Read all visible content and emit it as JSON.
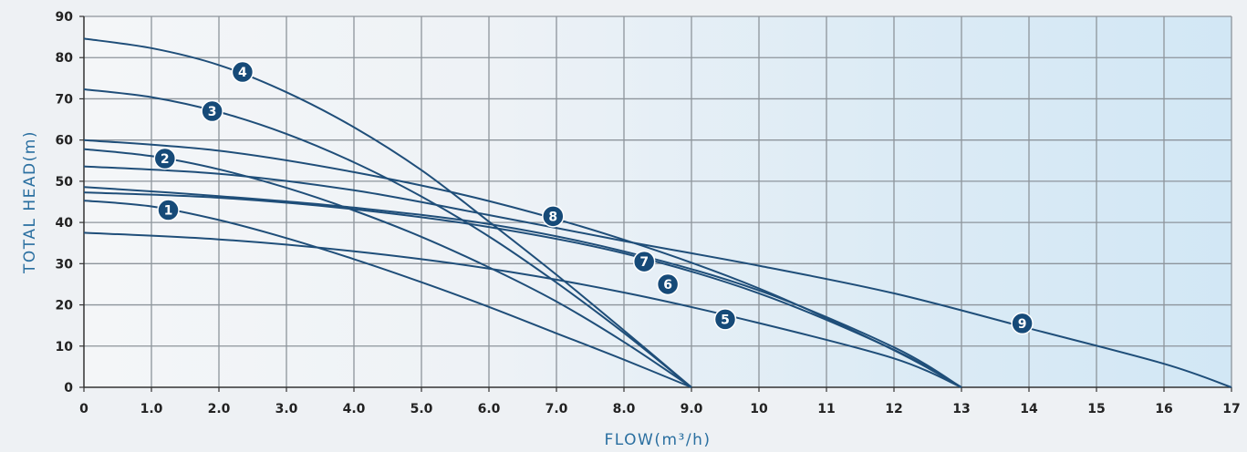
{
  "chart_data": {
    "type": "line",
    "xlabel": "FLOW(m³/h)",
    "ylabel": "TOTAL HEAD(m)",
    "xlim": [
      0,
      17
    ],
    "ylim": [
      0,
      90
    ],
    "grid": true,
    "x_tick_labels": [
      "0",
      "1.0",
      "2.0",
      "3.0",
      "4.0",
      "5.0",
      "6.0",
      "7.0",
      "8.0",
      "9.0",
      "10",
      "11",
      "12",
      "13",
      "14",
      "15",
      "16",
      "17"
    ],
    "y_tick_labels": [
      "0",
      "10",
      "20",
      "30",
      "40",
      "50",
      "60",
      "70",
      "80",
      "90"
    ],
    "line_color": "#1f4e79",
    "label_color": "#164a78",
    "series": [
      {
        "name": "1",
        "label_at": [
          1.25,
          43
        ],
        "points": [
          [
            0,
            45.3
          ],
          [
            1,
            43.9
          ],
          [
            2,
            40.6
          ],
          [
            3,
            36.2
          ],
          [
            4,
            31.1
          ],
          [
            5,
            25.5
          ],
          [
            6,
            19.5
          ],
          [
            7,
            13.1
          ],
          [
            8,
            6.7
          ],
          [
            9,
            0
          ]
        ]
      },
      {
        "name": "2",
        "label_at": [
          1.2,
          55.5
        ],
        "points": [
          [
            0,
            57.8
          ],
          [
            1,
            56.1
          ],
          [
            2,
            52.9
          ],
          [
            3,
            48.4
          ],
          [
            4,
            42.9
          ],
          [
            5,
            36.5
          ],
          [
            6,
            29.1
          ],
          [
            7,
            20.8
          ],
          [
            8,
            11.0
          ],
          [
            9,
            0
          ]
        ]
      },
      {
        "name": "3",
        "label_at": [
          1.9,
          67
        ],
        "points": [
          [
            0,
            72.3
          ],
          [
            1,
            70.4
          ],
          [
            2,
            66.8
          ],
          [
            3,
            61.5
          ],
          [
            4,
            54.6
          ],
          [
            5,
            46.3
          ],
          [
            6,
            36.6
          ],
          [
            7,
            25.4
          ],
          [
            8,
            13.2
          ],
          [
            9,
            0
          ]
        ]
      },
      {
        "name": "4",
        "label_at": [
          2.35,
          76.5
        ],
        "points": [
          [
            0,
            84.6
          ],
          [
            1,
            82.3
          ],
          [
            2,
            78.2
          ],
          [
            3,
            71.6
          ],
          [
            4,
            63.1
          ],
          [
            5,
            52.7
          ],
          [
            6,
            40.2
          ],
          [
            7,
            27.3
          ],
          [
            8,
            13.8
          ],
          [
            9,
            0
          ]
        ]
      },
      {
        "name": "5",
        "label_at": [
          9.5,
          16.5
        ],
        "points": [
          [
            0,
            37.5
          ],
          [
            2,
            35.9
          ],
          [
            4,
            33.0
          ],
          [
            6,
            28.8
          ],
          [
            8,
            23.0
          ],
          [
            10,
            15.6
          ],
          [
            12,
            7.0
          ],
          [
            13,
            0
          ]
        ]
      },
      {
        "name": "6",
        "label_at": [
          8.65,
          25
        ],
        "points": [
          [
            0,
            47.3
          ],
          [
            2,
            46.0
          ],
          [
            4,
            43.2
          ],
          [
            6,
            38.9
          ],
          [
            8,
            32.5
          ],
          [
            10,
            22.8
          ],
          [
            12,
            9.1
          ],
          [
            13,
            0
          ]
        ]
      },
      {
        "name": "7",
        "label_at": [
          8.3,
          30.5
        ],
        "points": [
          [
            0,
            48.6
          ],
          [
            2,
            46.4
          ],
          [
            4,
            43.6
          ],
          [
            6,
            39.6
          ],
          [
            8,
            33.0
          ],
          [
            10,
            23.5
          ],
          [
            12,
            9.7
          ],
          [
            13,
            0
          ]
        ]
      },
      {
        "name": "8",
        "label_at": [
          6.95,
          41.5
        ],
        "points": [
          [
            0,
            60.0
          ],
          [
            2,
            57.4
          ],
          [
            4,
            52.2
          ],
          [
            6,
            45.2
          ],
          [
            8,
            35.8
          ],
          [
            10,
            24.0
          ],
          [
            12,
            9.0
          ],
          [
            13,
            0
          ]
        ]
      },
      {
        "name": "9",
        "label_at": [
          13.9,
          15.5
        ],
        "points": [
          [
            0,
            53.6
          ],
          [
            2,
            51.8
          ],
          [
            4,
            47.8
          ],
          [
            6,
            41.8
          ],
          [
            8,
            35.5
          ],
          [
            10,
            29.5
          ],
          [
            12,
            22.8
          ],
          [
            14,
            14.3
          ],
          [
            16,
            5.7
          ],
          [
            17,
            0
          ]
        ]
      }
    ]
  }
}
